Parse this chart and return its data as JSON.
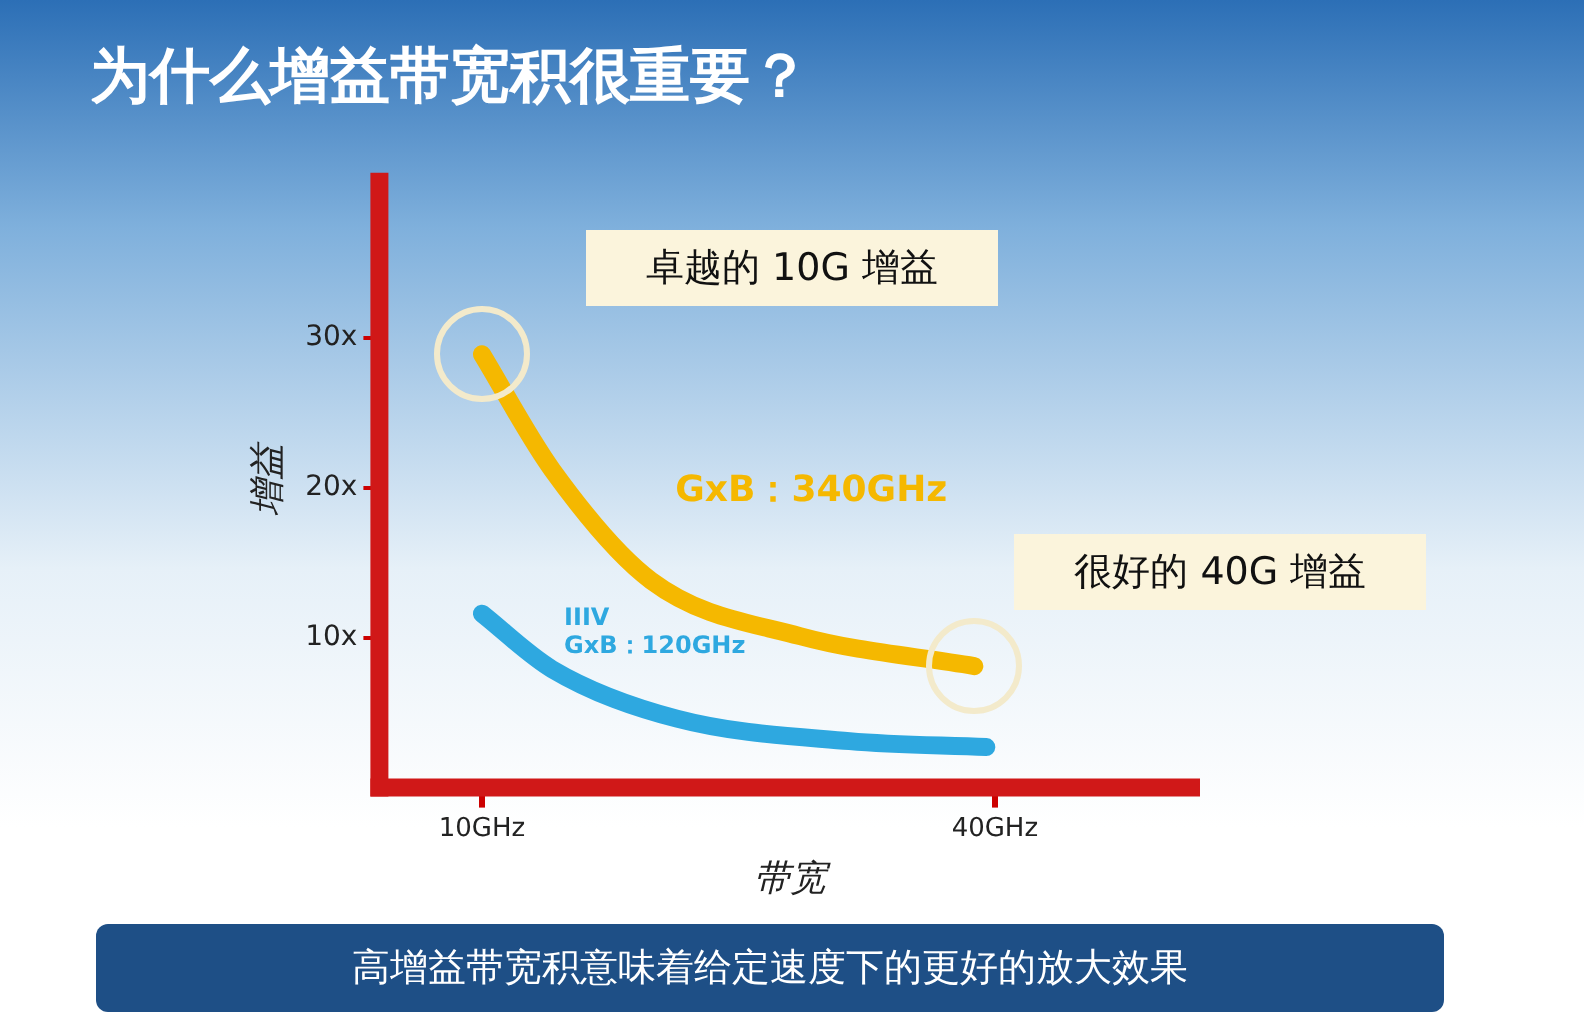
{
  "chart_data": {
    "type": "line",
    "title": "为什么增益带宽积很重要？",
    "xlabel": "带宽",
    "ylabel": "增益",
    "series": [
      {
        "name": "GxB：340GHz",
        "color": "#f5b800",
        "x": [
          10,
          14.1,
          19.9,
          28.6,
          38.8
        ],
        "values": [
          28.9,
          21.2,
          13.8,
          10.1,
          8.1
        ]
      },
      {
        "name": "IIIV GxB：120GHz",
        "color": "#2ea8e0",
        "x": [
          10,
          14.1,
          21.4,
          31.5,
          39.5
        ],
        "values": [
          11.6,
          7.9,
          4.6,
          3.1,
          2.7
        ]
      }
    ],
    "xlim": [
      4,
      52
    ],
    "ylim": [
      0,
      41
    ],
    "xticks": [
      {
        "value": 10,
        "label": "10GHz"
      },
      {
        "value": 40,
        "label": "40GHz"
      }
    ],
    "yticks": [
      {
        "value": 10,
        "label": "10x"
      },
      {
        "value": 20,
        "label": "20x"
      },
      {
        "value": 30,
        "label": "30x"
      }
    ],
    "annotations": [
      "卓越的 10G 增益",
      "很好的 40G 增益",
      "高增益带宽积意味着给定速度下的更好的放大效果"
    ],
    "legend": false,
    "grid": false,
    "marker": "none",
    "line_style": "solid"
  }
}
